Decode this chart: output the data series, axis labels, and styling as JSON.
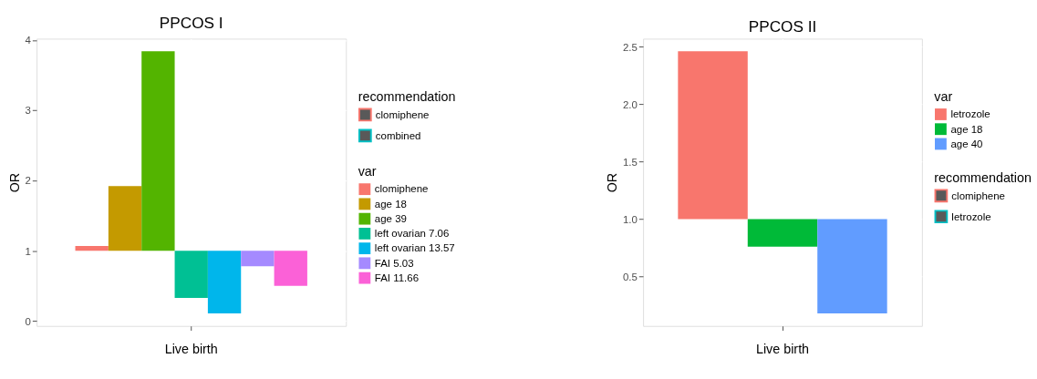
{
  "chart_data": [
    {
      "type": "bar",
      "title": "PPCOS I",
      "ylabel": "OR",
      "categories": [
        "Live birth"
      ],
      "ylim": [
        -0.07,
        4.02
      ],
      "yticks": [
        0,
        1,
        2,
        3,
        4
      ],
      "grid": true,
      "legend": "right",
      "legend_title": {
        "other": "recommendation",
        "bar": "var"
      },
      "series": [
        {
          "name": "clomiphene",
          "color": "#f8766d",
          "values": [
            0.07
          ],
          "base": [
            1
          ]
        },
        {
          "name": "age 18",
          "color": "#c49a00",
          "values": [
            0.92
          ],
          "base": [
            1
          ]
        },
        {
          "name": "age 39",
          "color": "#53b400",
          "values": [
            2.84
          ],
          "base": [
            1
          ]
        },
        {
          "name": "left ovarian 7.06",
          "color": "#00c094",
          "values": [
            -0.67
          ],
          "base": [
            1
          ]
        },
        {
          "name": "left ovarian 13.57",
          "color": "#00b6eb",
          "values": [
            -0.89
          ],
          "base": [
            1
          ]
        },
        {
          "name": "FAI 5.03",
          "color": "#a58aff",
          "values": [
            -0.22
          ],
          "base": [
            1
          ]
        },
        {
          "name": "FAI 11.66",
          "color": "#fb61d7",
          "values": [
            -0.5
          ],
          "base": [
            1
          ]
        },
        {
          "name": "clomiphene",
          "type": "other",
          "color": "#f8766d",
          "values": [
            null
          ]
        },
        {
          "name": "combined",
          "type": "other",
          "color": "#00bfc4",
          "values": [
            null
          ]
        }
      ]
    },
    {
      "type": "bar",
      "title": "PPCOS II",
      "ylabel": "OR",
      "categories": [
        "Live birth"
      ],
      "ylim": [
        0.07,
        2.57
      ],
      "yticks": [
        {
          "value": 0.5,
          "label": "0.5"
        },
        {
          "value": 1,
          "label": "1.0"
        },
        {
          "value": 1.5,
          "label": "1.5"
        },
        {
          "value": 2,
          "label": "2.0"
        },
        {
          "value": 2.5,
          "label": "2.5"
        }
      ],
      "grid": true,
      "legend": "right",
      "legend_title": {
        "bar": "var",
        "other": "recommendation"
      },
      "series": [
        {
          "name": "letrozole",
          "color": "#f8766d",
          "values": [
            1.46
          ],
          "base": [
            1
          ]
        },
        {
          "name": "age 18",
          "color": "#00ba38",
          "values": [
            -0.24
          ],
          "base": [
            1
          ]
        },
        {
          "name": "age 40",
          "color": "#619cff",
          "values": [
            -0.82
          ],
          "base": [
            1
          ]
        },
        {
          "name": "clomiphene",
          "type": "other",
          "color": "#f8766d",
          "values": [
            null
          ]
        },
        {
          "name": "letrozole",
          "type": "other",
          "color": "#00bfc4",
          "values": [
            null
          ]
        }
      ]
    }
  ]
}
